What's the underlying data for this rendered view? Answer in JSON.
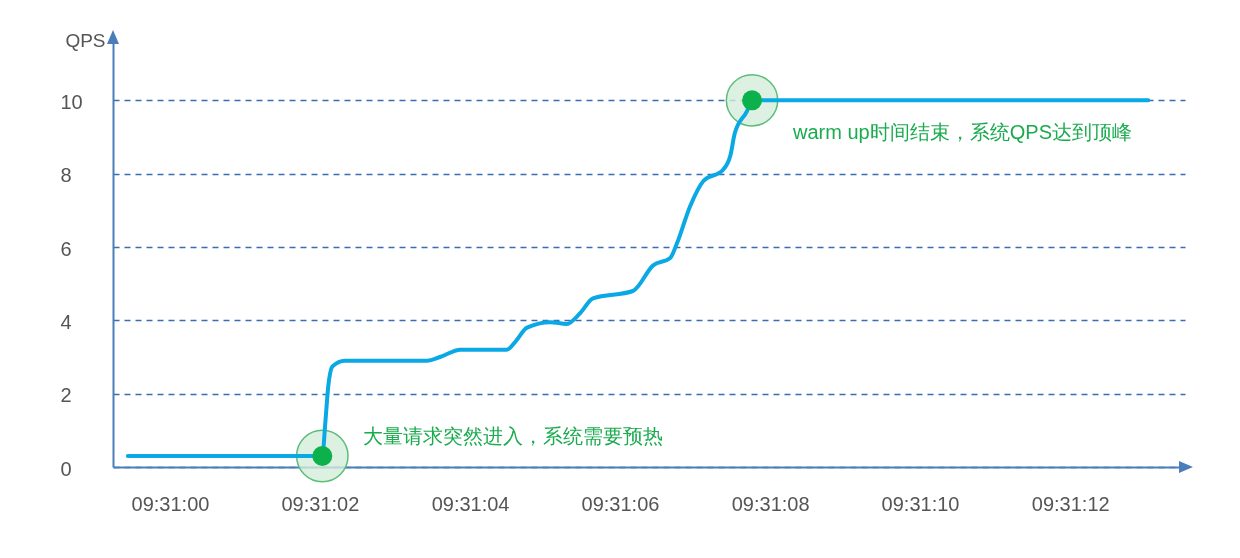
{
  "chart_data": {
    "type": "line",
    "ylabel": "QPS",
    "x": [
      9.516511,
      9.517231,
      9.517242,
      9.517253,
      9.517269,
      9.517314,
      9.517619,
      9.517667,
      9.517742,
      9.517914,
      9.517944,
      9.517989,
      9.518075,
      9.518136,
      9.518186,
      9.518233,
      9.518381,
      9.518456,
      9.518519,
      9.518544,
      9.518592,
      9.518642,
      9.518714,
      9.518742,
      9.518758,
      9.518803,
      9.518822,
      9.520289
    ],
    "series": [
      {
        "color": "#0aa8e4",
        "values": [
          0.3,
          0.3,
          1.2,
          2.2,
          2.75,
          2.9,
          2.9,
          3.0,
          3.2,
          3.2,
          3.4,
          3.8,
          3.95,
          3.9,
          4.2,
          4.6,
          4.8,
          5.5,
          5.7,
          6.1,
          7.1,
          7.8,
          8.1,
          8.5,
          9.1,
          9.7,
          10,
          10
        ]
      },
      {
        "type": "scatter",
        "color": "#0cb14b",
        "x": [
          9.517231,
          9.518822
        ],
        "values": [
          0.3,
          10
        ]
      }
    ],
    "xlim": [
      9.516456,
      9.520425
    ],
    "xticks": [
      {
        "value": 9.516667,
        "label": "09:31:00"
      },
      {
        "value": 9.517222,
        "label": "09:31:02"
      },
      {
        "value": 9.517778,
        "label": "09:31:04"
      },
      {
        "value": 9.518333,
        "label": "09:31:06"
      },
      {
        "value": 9.518889,
        "label": "09:31:08"
      },
      {
        "value": 9.519444,
        "label": "09:31:10"
      },
      {
        "value": 9.52,
        "label": "09:31:12"
      }
    ],
    "ylim": [
      0,
      11.7
    ],
    "yticks": [
      0,
      2,
      4,
      6,
      8,
      10
    ],
    "grid": "y",
    "annotations": [
      {
        "text": "大量请求突然进入，系统需要预热",
        "x": 9.517231,
        "y": 0.3
      },
      {
        "text": "warm up时间结束，系统QPS达到顶峰",
        "x": 9.518822,
        "y": 10
      }
    ]
  }
}
